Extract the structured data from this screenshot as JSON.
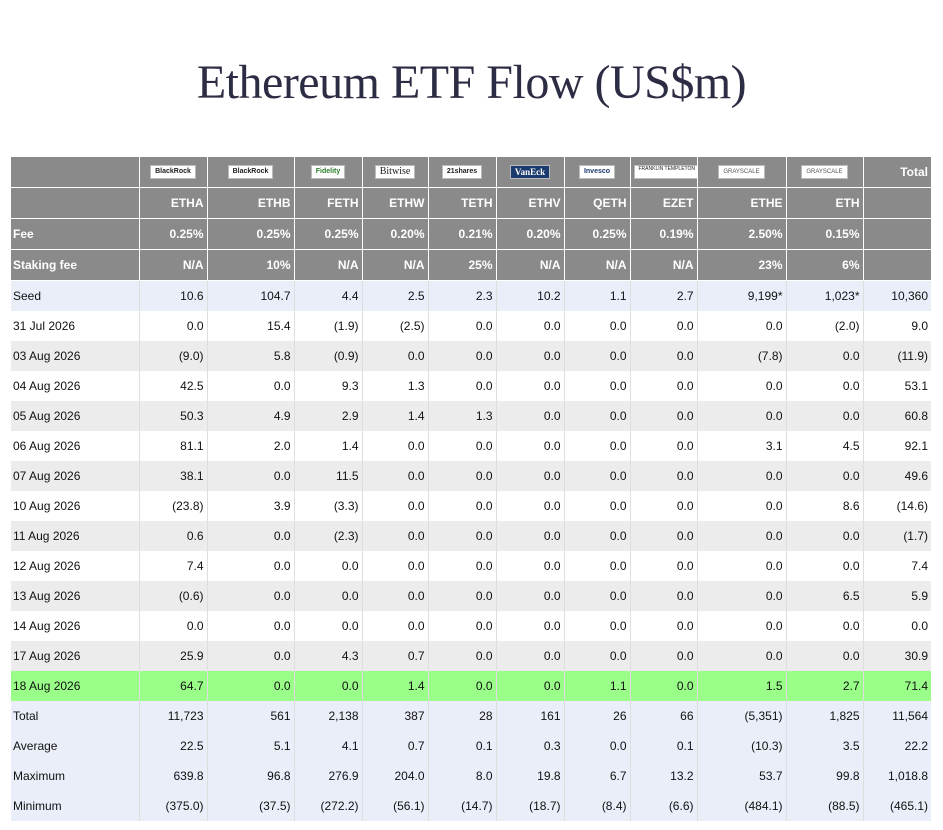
{
  "title": "Ethereum ETF Flow (US$m)",
  "issuers": [
    {
      "name": "BlackRock",
      "style": "plain"
    },
    {
      "name": "BlackRock",
      "style": "plain"
    },
    {
      "name": "Fidelity",
      "style": "fid"
    },
    {
      "name": "Bitwise",
      "style": "serif"
    },
    {
      "name": "21shares",
      "style": "plain"
    },
    {
      "name": "VanEck",
      "style": "van"
    },
    {
      "name": "Invesco",
      "style": "inv"
    },
    {
      "name": "FRANKLIN TEMPLETON",
      "style": "frank"
    },
    {
      "name": "GRAYSCALE",
      "style": "gray"
    },
    {
      "name": "GRAYSCALE",
      "style": "gray"
    }
  ],
  "total_label": "Total",
  "tickers": [
    "ETHA",
    "ETHB",
    "FETH",
    "ETHW",
    "TETH",
    "ETHV",
    "QETH",
    "EZET",
    "ETHE",
    "ETH"
  ],
  "fee": {
    "label": "Fee",
    "values": [
      "0.25%",
      "0.25%",
      "0.25%",
      "0.20%",
      "0.21%",
      "0.20%",
      "0.25%",
      "0.19%",
      "2.50%",
      "0.15%"
    ]
  },
  "staking_fee": {
    "label": "Staking fee",
    "values": [
      "N/A",
      "10%",
      "N/A",
      "N/A",
      "25%",
      "N/A",
      "N/A",
      "N/A",
      "23%",
      "6%"
    ]
  },
  "rows": [
    {
      "label": "Seed",
      "kind": "seed",
      "values": [
        "10.6",
        "104.7",
        "4.4",
        "2.5",
        "2.3",
        "10.2",
        "1.1",
        "2.7",
        "9,199*",
        "1,023*",
        "10,360"
      ]
    },
    {
      "label": "31 Jul 2026",
      "kind": "plain",
      "values": [
        "0.0",
        "15.4",
        "(1.9)",
        "(2.5)",
        "0.0",
        "0.0",
        "0.0",
        "0.0",
        "0.0",
        "(2.0)",
        "9.0"
      ]
    },
    {
      "label": "03 Aug 2026",
      "kind": "shade",
      "values": [
        "(9.0)",
        "5.8",
        "(0.9)",
        "0.0",
        "0.0",
        "0.0",
        "0.0",
        "0.0",
        "(7.8)",
        "0.0",
        "(11.9)"
      ]
    },
    {
      "label": "04 Aug 2026",
      "kind": "plain",
      "values": [
        "42.5",
        "0.0",
        "9.3",
        "1.3",
        "0.0",
        "0.0",
        "0.0",
        "0.0",
        "0.0",
        "0.0",
        "53.1"
      ]
    },
    {
      "label": "05 Aug 2026",
      "kind": "shade",
      "values": [
        "50.3",
        "4.9",
        "2.9",
        "1.4",
        "1.3",
        "0.0",
        "0.0",
        "0.0",
        "0.0",
        "0.0",
        "60.8"
      ]
    },
    {
      "label": "06 Aug 2026",
      "kind": "plain",
      "values": [
        "81.1",
        "2.0",
        "1.4",
        "0.0",
        "0.0",
        "0.0",
        "0.0",
        "0.0",
        "3.1",
        "4.5",
        "92.1"
      ]
    },
    {
      "label": "07 Aug 2026",
      "kind": "shade",
      "values": [
        "38.1",
        "0.0",
        "11.5",
        "0.0",
        "0.0",
        "0.0",
        "0.0",
        "0.0",
        "0.0",
        "0.0",
        "49.6"
      ]
    },
    {
      "label": "10 Aug 2026",
      "kind": "plain",
      "values": [
        "(23.8)",
        "3.9",
        "(3.3)",
        "0.0",
        "0.0",
        "0.0",
        "0.0",
        "0.0",
        "0.0",
        "8.6",
        "(14.6)"
      ]
    },
    {
      "label": "11 Aug 2026",
      "kind": "shade",
      "values": [
        "0.6",
        "0.0",
        "(2.3)",
        "0.0",
        "0.0",
        "0.0",
        "0.0",
        "0.0",
        "0.0",
        "0.0",
        "(1.7)"
      ]
    },
    {
      "label": "12 Aug 2026",
      "kind": "plain",
      "values": [
        "7.4",
        "0.0",
        "0.0",
        "0.0",
        "0.0",
        "0.0",
        "0.0",
        "0.0",
        "0.0",
        "0.0",
        "7.4"
      ]
    },
    {
      "label": "13 Aug 2026",
      "kind": "shade",
      "values": [
        "(0.6)",
        "0.0",
        "0.0",
        "0.0",
        "0.0",
        "0.0",
        "0.0",
        "0.0",
        "0.0",
        "6.5",
        "5.9"
      ]
    },
    {
      "label": "14 Aug 2026",
      "kind": "plain",
      "values": [
        "0.0",
        "0.0",
        "0.0",
        "0.0",
        "0.0",
        "0.0",
        "0.0",
        "0.0",
        "0.0",
        "0.0",
        "0.0"
      ]
    },
    {
      "label": "17 Aug 2026",
      "kind": "shade",
      "values": [
        "25.9",
        "0.0",
        "4.3",
        "0.7",
        "0.0",
        "0.0",
        "0.0",
        "0.0",
        "0.0",
        "0.0",
        "30.9"
      ]
    },
    {
      "label": "18 Aug 2026",
      "kind": "hl",
      "values": [
        "64.7",
        "0.0",
        "0.0",
        "1.4",
        "0.0",
        "0.0",
        "1.1",
        "0.0",
        "1.5",
        "2.7",
        "71.4"
      ]
    },
    {
      "label": "Total",
      "kind": "sum",
      "values": [
        "11,723",
        "561",
        "2,138",
        "387",
        "28",
        "161",
        "26",
        "66",
        "(5,351)",
        "1,825",
        "11,564"
      ]
    },
    {
      "label": "Average",
      "kind": "sum",
      "values": [
        "22.5",
        "5.1",
        "4.1",
        "0.7",
        "0.1",
        "0.3",
        "0.0",
        "0.1",
        "(10.3)",
        "3.5",
        "22.2"
      ]
    },
    {
      "label": "Maximum",
      "kind": "sum",
      "values": [
        "639.8",
        "96.8",
        "276.9",
        "204.0",
        "8.0",
        "19.8",
        "6.7",
        "13.2",
        "53.7",
        "99.8",
        "1,018.8"
      ]
    },
    {
      "label": "Minimum",
      "kind": "sum",
      "values": [
        "(375.0)",
        "(37.5)",
        "(272.2)",
        "(56.1)",
        "(14.7)",
        "(18.7)",
        "(8.4)",
        "(6.6)",
        "(484.1)",
        "(88.5)",
        "(465.1)"
      ]
    }
  ]
}
